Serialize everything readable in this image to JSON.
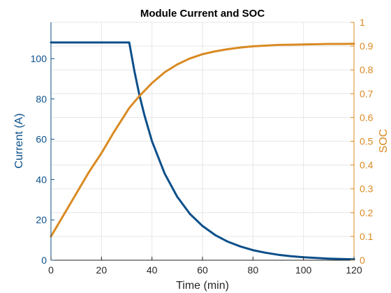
{
  "chart_data": {
    "type": "line",
    "title": "Module Current and SOC",
    "xlabel": "Time (min)",
    "ylabel_left": "Current (A)",
    "ylabel_right": "SOC",
    "xlim": [
      0,
      120
    ],
    "ylim_left": [
      0,
      118
    ],
    "ylim_right": [
      0,
      1
    ],
    "xticks": [
      0,
      20,
      40,
      60,
      80,
      100,
      120
    ],
    "yticks_left": [
      0,
      20,
      40,
      60,
      80,
      100
    ],
    "yticks_right": [
      0,
      0.1,
      0.2,
      0.3,
      0.4,
      0.5,
      0.6,
      0.7,
      0.8,
      0.9,
      1
    ],
    "grid": true,
    "colors": {
      "left_axis": "#0b4f8a",
      "right_axis": "#d98a22",
      "grid": "#e6e6e6",
      "axis": "#222222"
    },
    "series": [
      {
        "axis": "left",
        "color": "#0b4f8a",
        "x": [
          0,
          10,
          20,
          31,
          33,
          35,
          37,
          40,
          45,
          50,
          55,
          60,
          65,
          70,
          75,
          80,
          85,
          90,
          95,
          100,
          105,
          110,
          115,
          120
        ],
        "y": [
          108,
          108,
          108,
          108,
          94,
          82,
          72,
          59,
          43,
          31.5,
          23,
          17,
          12.5,
          9.2,
          6.8,
          5,
          3.7,
          2.7,
          2,
          1.5,
          1.1,
          0.8,
          0.6,
          0.4
        ]
      },
      {
        "axis": "right",
        "color": "#d98a22",
        "x": [
          0,
          5,
          10,
          15,
          20,
          25,
          31,
          35,
          40,
          45,
          50,
          55,
          60,
          65,
          70,
          75,
          80,
          85,
          90,
          95,
          100,
          105,
          110,
          115,
          120
        ],
        "y": [
          0.1,
          0.19,
          0.28,
          0.37,
          0.45,
          0.54,
          0.64,
          0.69,
          0.745,
          0.79,
          0.823,
          0.848,
          0.866,
          0.878,
          0.887,
          0.894,
          0.899,
          0.902,
          0.905,
          0.906,
          0.907,
          0.908,
          0.909,
          0.909,
          0.91
        ]
      }
    ]
  }
}
